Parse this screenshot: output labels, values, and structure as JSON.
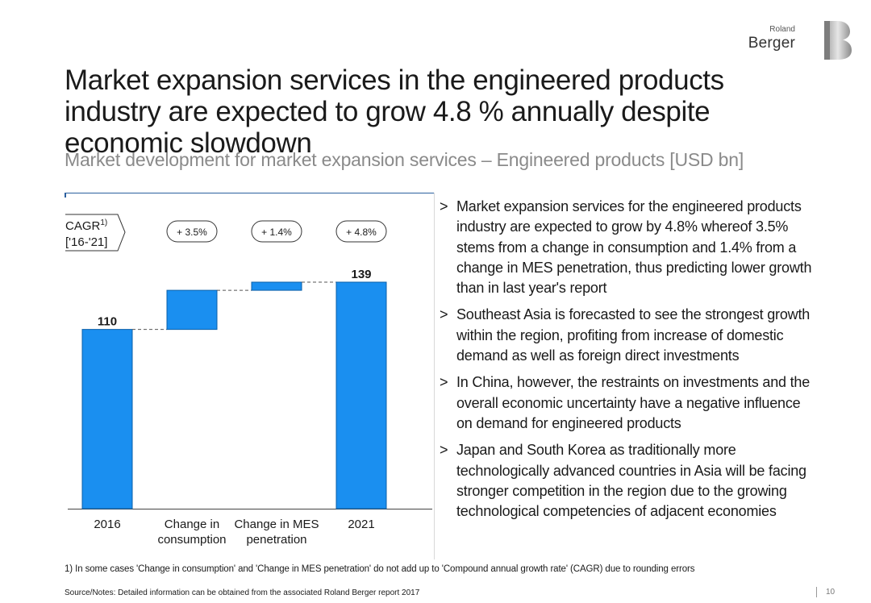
{
  "brand": {
    "line1": "Roland",
    "line2": "Berger",
    "logo_letter": "B"
  },
  "title": "Market expansion services in the engineered products industry are expected to grow 4.8 % annually despite economic slowdown",
  "subtitle": "Market development for market expansion services – Engineered products [USD bn]",
  "chart_data": {
    "type": "waterfall",
    "categories": [
      "2016",
      "Change in consumption",
      "Change in MES penetration",
      "2021"
    ],
    "category_lines": [
      [
        "2016"
      ],
      [
        "Change in",
        "consumption"
      ],
      [
        "Change in MES",
        "penetration"
      ],
      [
        "2021"
      ]
    ],
    "bars": [
      {
        "category": "2016",
        "base": 0,
        "value": 110,
        "label": "110",
        "kind": "total"
      },
      {
        "category": "Change in consumption",
        "base": 110,
        "value": 24,
        "label": "",
        "kind": "delta"
      },
      {
        "category": "Change in MES penetration",
        "base": 134,
        "value": 5,
        "label": "",
        "kind": "delta"
      },
      {
        "category": "2021",
        "base": 0,
        "value": 139,
        "label": "139",
        "kind": "total"
      }
    ],
    "ylim": [
      0,
      145
    ],
    "cagr": {
      "label": "CAGR",
      "superscript": "1)",
      "period": "['16-'21]",
      "badges": [
        "+ 3.5%",
        "+ 1.4%",
        "+ 4.8%"
      ]
    },
    "colors": {
      "bar": "#1a8ff0",
      "bar_border": "#0b5fa8",
      "connector": "#555555"
    }
  },
  "bullets": [
    {
      "marker": ">",
      "text": "Market expansion services for the engineered products industry are expected to grow by 4.8% whereof 3.5% stems from a change in consumption and 1.4% from a change in MES penetration, thus predicting lower growth than in last year's report"
    },
    {
      "marker": ">",
      "text": "Southeast Asia is forecasted to see the strongest growth within the region, profiting from increase of domestic demand as well as foreign direct investments"
    },
    {
      "marker": ">",
      "text": "In China, however, the restraints on investments and the overall economic uncertainty have a negative influence on demand for engineered products"
    },
    {
      "marker": ">",
      "text": "Japan and South Korea as traditionally more technologically advanced countries in Asia will be facing stronger competition in the region due to the growing technological competencies of adjacent economies"
    }
  ],
  "footnote": "1) In some cases 'Change in consumption' and 'Change in MES penetration' do not add up to 'Compound annual growth rate' (CAGR) due to rounding errors",
  "source": "Source/Notes: Detailed information can be obtained from the associated Roland Berger report 2017",
  "page_number": "10"
}
